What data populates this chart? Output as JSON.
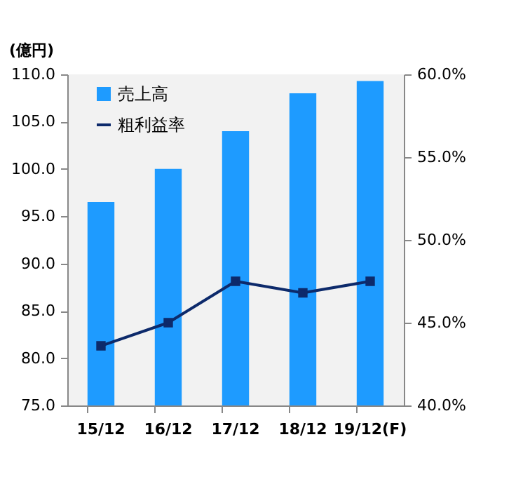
{
  "chart_data": {
    "type": "bar",
    "ylabel": "(億円)",
    "categories": [
      "15/12",
      "16/12",
      "17/12",
      "18/12",
      "19/12(F)"
    ],
    "series": [
      {
        "name": "売上高",
        "color": "#1e9bff",
        "values": [
          96.5,
          100.0,
          104.0,
          108.0,
          109.3
        ]
      },
      {
        "name": "粗利益率",
        "type": "line",
        "axis": "y2",
        "color": "#0d2a6b",
        "marker": "square",
        "values": [
          43.6,
          45.0,
          47.5,
          46.8,
          47.5
        ]
      }
    ],
    "ylim": [
      75,
      110
    ],
    "yticks": [
      {
        "value": 75,
        "label": "75.0"
      },
      {
        "value": 80,
        "label": "80.0"
      },
      {
        "value": 85,
        "label": "85.0"
      },
      {
        "value": 90,
        "label": "90.0"
      },
      {
        "value": 95,
        "label": "95.0"
      },
      {
        "value": 100,
        "label": "100.0"
      },
      {
        "value": 105,
        "label": "105.0"
      },
      {
        "value": 110,
        "label": "110.0"
      }
    ],
    "y2lim": [
      40,
      60
    ],
    "y2ticks": [
      {
        "value": 40,
        "label": "40.0%"
      },
      {
        "value": 45,
        "label": "45.0%"
      },
      {
        "value": 50,
        "label": "50.0%"
      },
      {
        "value": 55,
        "label": "55.0%"
      },
      {
        "value": 60,
        "label": "60.0%"
      }
    ],
    "grid": false,
    "legend": "top left"
  }
}
